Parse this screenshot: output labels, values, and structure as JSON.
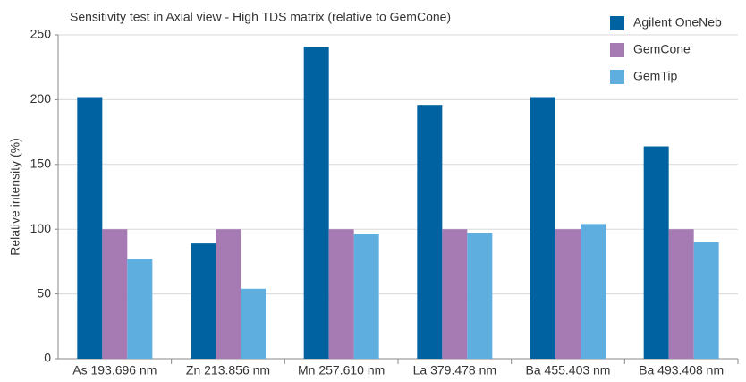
{
  "chart_data": {
    "type": "bar",
    "title": "Sensitivity test in Axial view - High TDS matrix (relative to GemCone)",
    "y_label": "Relative intensity (%)",
    "categories": [
      "As 193.696 nm",
      "Zn 213.856 nm",
      "Mn 257.610 nm",
      "La 379.478 nm",
      "Ba 455.403 nm",
      "Ba 493.408 nm"
    ],
    "series": [
      {
        "name": "Agilent OneNeb",
        "color": "#0062a0",
        "values": [
          202,
          89,
          241,
          196,
          202,
          164
        ]
      },
      {
        "name": "GemCone",
        "color": "#a67bb4",
        "values": [
          100,
          100,
          100,
          100,
          100,
          100
        ]
      },
      {
        "name": "GemTip",
        "color": "#5eaee0",
        "values": [
          77,
          54,
          96,
          97,
          104,
          90
        ]
      }
    ],
    "ylim": [
      0,
      250
    ],
    "yticks": [
      0,
      50,
      100,
      150,
      200,
      250
    ],
    "grid": true,
    "legend": "top-right"
  }
}
